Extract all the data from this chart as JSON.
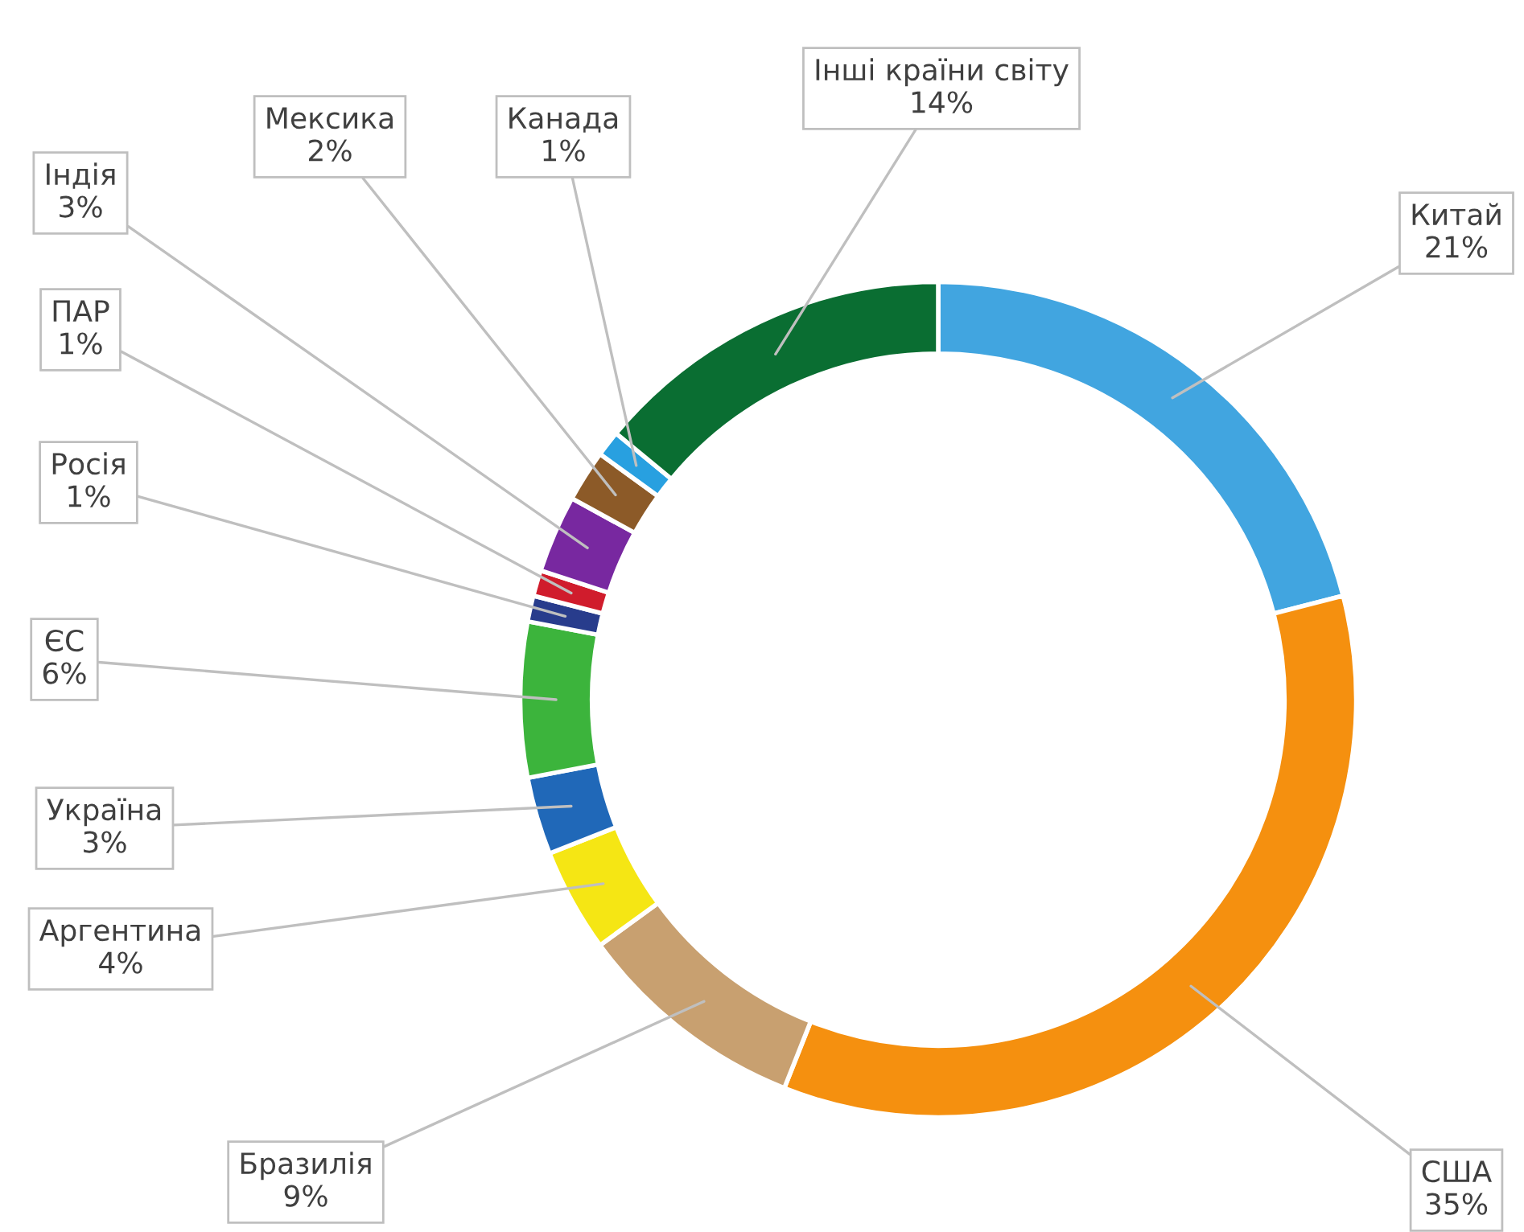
{
  "chart_data": {
    "type": "donut",
    "categories": [
      "Китай",
      "США",
      "Бразилія",
      "Аргентина",
      "Україна",
      "ЄС",
      "Росія",
      "ПАР",
      "Індія",
      "Мексика",
      "Канада",
      "Інші країни світу"
    ],
    "values": [
      21,
      35,
      9,
      4,
      3,
      6,
      1,
      1,
      3,
      2,
      1,
      14
    ],
    "value_labels": [
      "21%",
      "35%",
      "9%",
      "4%",
      "3%",
      "6%",
      "1%",
      "1%",
      "3%",
      "2%",
      "1%",
      "14%"
    ],
    "colors": [
      "#41a5e0",
      "#f5900f",
      "#c8a070",
      "#f5e614",
      "#2068b8",
      "#3cb43c",
      "#283c8c",
      "#d01c2c",
      "#7828a0",
      "#8c5a28",
      "#28a0e0",
      "#0a6e32"
    ],
    "legend": false
  }
}
